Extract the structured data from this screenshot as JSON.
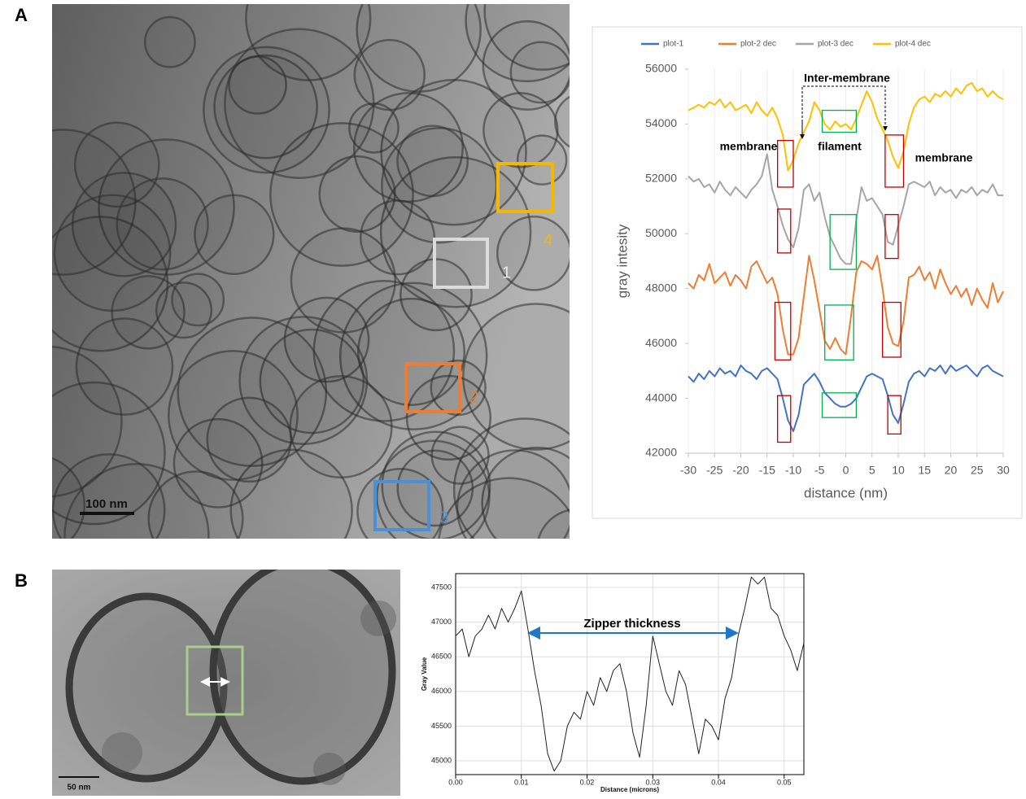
{
  "figure": {
    "panel_labels": [
      "A",
      "B"
    ],
    "micrograph_a": {
      "scale_bar": "100 nm",
      "box_labels": [
        "1",
        "2",
        "3",
        "4"
      ]
    },
    "micrograph_b": {
      "scale_bar": "50 nm"
    }
  },
  "chart_data": [
    {
      "type": "line",
      "x_label": "distance (nm)",
      "y_label": "gray intesity",
      "annotations": [
        "Inter-membrane",
        "membrane",
        "filament",
        "membrane"
      ],
      "x": [
        -30,
        -29,
        -28,
        -27,
        -26,
        -25,
        -24,
        -23,
        -22,
        -21,
        -20,
        -19,
        -18,
        -17,
        -16,
        -15,
        -14,
        -13,
        -12,
        -11,
        -10,
        -9,
        -8,
        -7,
        -6,
        -5,
        -4,
        -3,
        -2,
        -1,
        0,
        1,
        2,
        3,
        4,
        5,
        6,
        7,
        8,
        9,
        10,
        11,
        12,
        13,
        14,
        15,
        16,
        17,
        18,
        19,
        20,
        21,
        22,
        23,
        24,
        25,
        26,
        27,
        28,
        29,
        30
      ],
      "series": [
        {
          "name": "plot-1",
          "color": "#4472c4",
          "values": [
            44800,
            44600,
            44900,
            44700,
            45000,
            44800,
            45100,
            44900,
            45000,
            44800,
            45200,
            45000,
            44900,
            44700,
            45000,
            45100,
            44900,
            44700,
            44000,
            43200,
            42800,
            43400,
            44500,
            44700,
            44900,
            44600,
            44200,
            44000,
            43800,
            43700,
            43700,
            43800,
            44000,
            44400,
            44800,
            44900,
            44800,
            44700,
            44100,
            43400,
            43100,
            43800,
            44600,
            44900,
            45000,
            44800,
            45100,
            45000,
            45200,
            44900,
            45200,
            45000,
            45100,
            45200,
            45000,
            44800,
            45100,
            45200,
            45000,
            44900,
            44800
          ]
        },
        {
          "name": "plot-2 dec",
          "color": "#ed7d31",
          "values": [
            48200,
            48000,
            48500,
            48300,
            48900,
            48200,
            48400,
            48600,
            48100,
            48500,
            48300,
            48000,
            48800,
            49000,
            48600,
            48200,
            48400,
            47800,
            46500,
            45600,
            45600,
            46200,
            47700,
            49200,
            48300,
            47200,
            46100,
            45800,
            46200,
            45800,
            45600,
            47000,
            48600,
            49000,
            48900,
            48700,
            49200,
            48000,
            46600,
            46000,
            45900,
            46800,
            48400,
            48500,
            48800,
            48300,
            48600,
            48000,
            48700,
            48200,
            47800,
            48100,
            47700,
            48000,
            47400,
            48000,
            47600,
            47300,
            48200,
            47500,
            47900
          ]
        },
        {
          "name": "plot-3 dec",
          "color": "#a5a5a5",
          "values": [
            52100,
            51900,
            52000,
            51700,
            51800,
            51500,
            51900,
            51600,
            51400,
            51700,
            51500,
            51300,
            51600,
            51800,
            52100,
            52900,
            51600,
            51000,
            50300,
            49800,
            49500,
            50200,
            51600,
            51800,
            51200,
            51500,
            50600,
            49900,
            49500,
            49100,
            48900,
            48900,
            50500,
            51700,
            51200,
            51300,
            51000,
            50700,
            49700,
            49600,
            50300,
            51000,
            51800,
            51900,
            51800,
            51700,
            51900,
            51400,
            51700,
            51500,
            51600,
            51300,
            51600,
            51500,
            51700,
            51400,
            51600,
            51500,
            51800,
            51400,
            51400
          ]
        },
        {
          "name": "plot-4 dec",
          "color": "#ffc000",
          "values": [
            54500,
            54600,
            54700,
            54600,
            54800,
            54700,
            54900,
            54600,
            54800,
            54500,
            54600,
            54700,
            54400,
            54800,
            54500,
            54300,
            54600,
            54200,
            53600,
            52300,
            52700,
            53300,
            53700,
            54100,
            54800,
            54500,
            54000,
            53800,
            54100,
            53900,
            54000,
            53800,
            54200,
            54700,
            55200,
            54800,
            54200,
            53800,
            53400,
            52800,
            52400,
            53000,
            54000,
            54600,
            54900,
            55000,
            54800,
            55100,
            55000,
            55200,
            55000,
            55300,
            55100,
            55400,
            55500,
            55200,
            55300,
            55000,
            55200,
            55000,
            54900
          ]
        }
      ],
      "xlim": [
        -30,
        30
      ],
      "xticks": [
        -30,
        -25,
        -20,
        -15,
        -10,
        -5,
        0,
        5,
        10,
        15,
        20,
        25,
        30
      ],
      "ylim": [
        42000,
        56000
      ],
      "yticks": [
        42000,
        44000,
        46000,
        48000,
        50000,
        52000,
        54000,
        56000
      ],
      "grid": true,
      "legend": "top"
    },
    {
      "type": "line",
      "x_label": "Distance (microns)",
      "y_label": "Gray Value",
      "annotations": [
        "Zipper thickness"
      ],
      "color": "#222222",
      "x": [
        0,
        0.001,
        0.002,
        0.003,
        0.004,
        0.005,
        0.006,
        0.007,
        0.008,
        0.009,
        0.01,
        0.011,
        0.012,
        0.013,
        0.014,
        0.015,
        0.016,
        0.017,
        0.018,
        0.019,
        0.02,
        0.021,
        0.022,
        0.023,
        0.024,
        0.025,
        0.026,
        0.027,
        0.028,
        0.029,
        0.03,
        0.031,
        0.032,
        0.033,
        0.034,
        0.035,
        0.036,
        0.037,
        0.038,
        0.039,
        0.04,
        0.041,
        0.042,
        0.043,
        0.044,
        0.045,
        0.046,
        0.047,
        0.048,
        0.049,
        0.05,
        0.051,
        0.052,
        0.053
      ],
      "values": [
        46800,
        46900,
        46500,
        46800,
        46900,
        47100,
        46900,
        47200,
        47000,
        47200,
        47450,
        46900,
        46300,
        45800,
        45100,
        44850,
        45000,
        45500,
        45700,
        45600,
        46000,
        45800,
        46200,
        46000,
        46300,
        46400,
        46000,
        45400,
        45050,
        45800,
        46800,
        46400,
        46000,
        45800,
        46300,
        46100,
        45600,
        45100,
        45600,
        45500,
        45300,
        45900,
        46200,
        46800,
        47200,
        47650,
        47550,
        47650,
        47200,
        47100,
        46800,
        46600,
        46300,
        46700
      ],
      "xlim": [
        0,
        0.053
      ],
      "xticks": [
        {
          "value": 0,
          "label": "0.00"
        },
        0.01,
        0.02,
        0.03,
        0.04,
        0.05
      ],
      "ylim": [
        44800,
        47700
      ],
      "yticks": [
        45000,
        45500,
        46000,
        46500,
        47000,
        47500
      ],
      "grid": true
    }
  ]
}
